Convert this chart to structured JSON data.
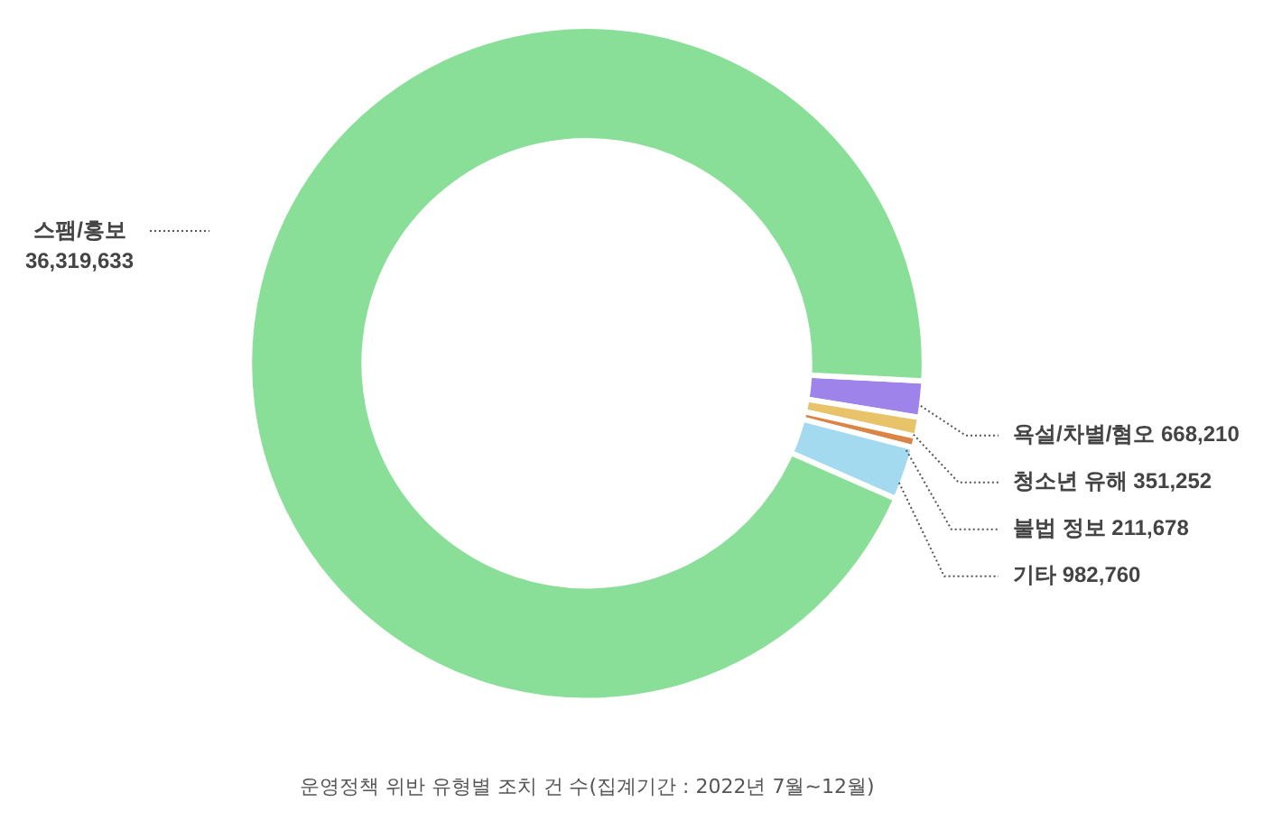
{
  "chart_data": {
    "type": "donut",
    "title": "운영정책 위반 유형별 조치 건 수(집계기간 : 2022년 7월~12월)",
    "categories": [
      "욕설/차별/혐오",
      "청소년 유해",
      "불법 정보",
      "기타",
      "스팸/홍보"
    ],
    "values": [
      668210,
      351252,
      211678,
      982760,
      36319633
    ],
    "colors": [
      "#9d83ea",
      "#e9c36a",
      "#db8445",
      "#a3daf0",
      "#89df98"
    ],
    "value_labels": [
      "668,210",
      "351,252",
      "211,678",
      "982,760",
      "36,319,633"
    ],
    "legend": false
  }
}
